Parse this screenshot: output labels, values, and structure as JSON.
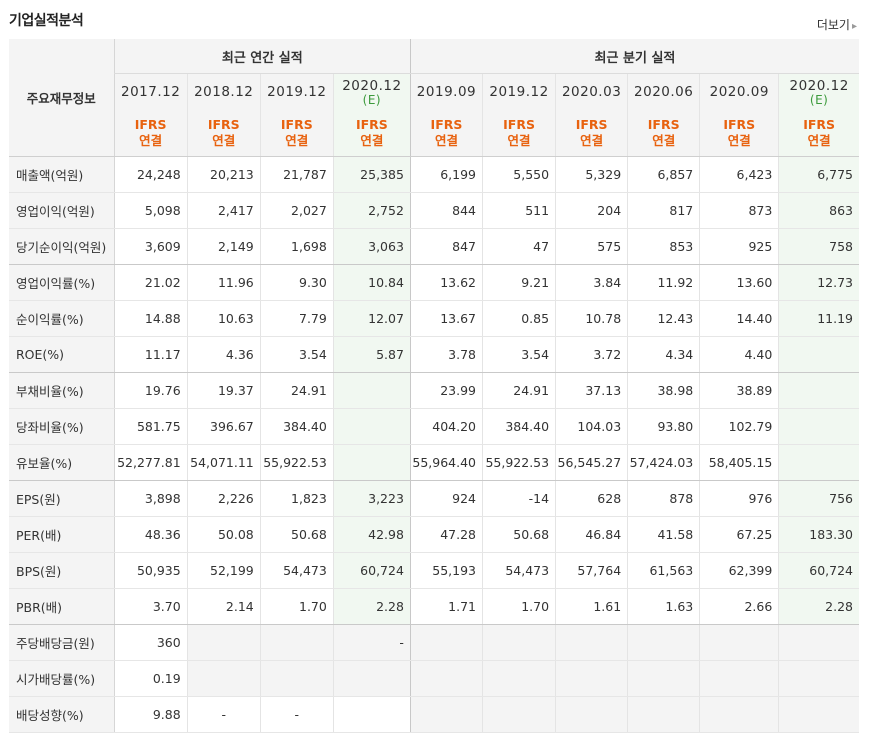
{
  "header": {
    "title": "기업실적분석",
    "more_label": "더보기",
    "more_arrow": "▸"
  },
  "corner_label": "주요재무정보",
  "groups": {
    "annual": "최근 연간 실적",
    "quarterly": "최근 분기 실적"
  },
  "columns": [
    {
      "date": "2017.12",
      "est": "",
      "std1": "IFRS",
      "std2": "연결"
    },
    {
      "date": "2018.12",
      "est": "",
      "std1": "IFRS",
      "std2": "연결"
    },
    {
      "date": "2019.12",
      "est": "",
      "std1": "IFRS",
      "std2": "연결"
    },
    {
      "date": "2020.12",
      "est": "(E)",
      "std1": "IFRS",
      "std2": "연결"
    },
    {
      "date": "2019.09",
      "est": "",
      "std1": "IFRS",
      "std2": "연결"
    },
    {
      "date": "2019.12",
      "est": "",
      "std1": "IFRS",
      "std2": "연결"
    },
    {
      "date": "2020.03",
      "est": "",
      "std1": "IFRS",
      "std2": "연결"
    },
    {
      "date": "2020.06",
      "est": "",
      "std1": "IFRS",
      "std2": "연결"
    },
    {
      "date": "2020.09",
      "est": "",
      "std1": "IFRS",
      "std2": "연결"
    },
    {
      "date": "2020.12",
      "est": "(E)",
      "std1": "IFRS",
      "std2": "연결"
    }
  ],
  "rows": [
    {
      "label": "매출액(억원)",
      "values": [
        "24,248",
        "20,213",
        "21,787",
        "25,385",
        "6,199",
        "5,550",
        "5,329",
        "6,857",
        "6,423",
        "6,775"
      ]
    },
    {
      "label": "영업이익(억원)",
      "values": [
        "5,098",
        "2,417",
        "2,027",
        "2,752",
        "844",
        "511",
        "204",
        "817",
        "873",
        "863"
      ]
    },
    {
      "label": "당기순이익(억원)",
      "values": [
        "3,609",
        "2,149",
        "1,698",
        "3,063",
        "847",
        "47",
        "575",
        "853",
        "925",
        "758"
      ]
    },
    {
      "label": "영업이익률(%)",
      "values": [
        "21.02",
        "11.96",
        "9.30",
        "10.84",
        "13.62",
        "9.21",
        "3.84",
        "11.92",
        "13.60",
        "12.73"
      ]
    },
    {
      "label": "순이익률(%)",
      "values": [
        "14.88",
        "10.63",
        "7.79",
        "12.07",
        "13.67",
        "0.85",
        "10.78",
        "12.43",
        "14.40",
        "11.19"
      ]
    },
    {
      "label": "ROE(%)",
      "values": [
        "11.17",
        "4.36",
        "3.54",
        "5.87",
        "3.78",
        "3.54",
        "3.72",
        "4.34",
        "4.40",
        ""
      ]
    },
    {
      "label": "부채비율(%)",
      "values": [
        "19.76",
        "19.37",
        "24.91",
        "",
        "23.99",
        "24.91",
        "37.13",
        "38.98",
        "38.89",
        ""
      ]
    },
    {
      "label": "당좌비율(%)",
      "values": [
        "581.75",
        "396.67",
        "384.40",
        "",
        "404.20",
        "384.40",
        "104.03",
        "93.80",
        "102.79",
        ""
      ]
    },
    {
      "label": "유보율(%)",
      "values": [
        "52,277.81",
        "54,071.11",
        "55,922.53",
        "",
        "55,964.40",
        "55,922.53",
        "56,545.27",
        "57,424.03",
        "58,405.15",
        ""
      ]
    },
    {
      "label": "EPS(원)",
      "values": [
        "3,898",
        "2,226",
        "1,823",
        "3,223",
        "924",
        "-14",
        "628",
        "878",
        "976",
        "756"
      ]
    },
    {
      "label": "PER(배)",
      "values": [
        "48.36",
        "50.08",
        "50.68",
        "42.98",
        "47.28",
        "50.68",
        "46.84",
        "41.58",
        "67.25",
        "183.30"
      ]
    },
    {
      "label": "BPS(원)",
      "values": [
        "50,935",
        "52,199",
        "54,473",
        "60,724",
        "55,193",
        "54,473",
        "57,764",
        "61,563",
        "62,399",
        "60,724"
      ]
    },
    {
      "label": "PBR(배)",
      "values": [
        "3.70",
        "2.14",
        "1.70",
        "2.28",
        "1.71",
        "1.70",
        "1.61",
        "1.63",
        "2.66",
        "2.28"
      ]
    },
    {
      "label": "주당배당금(원)",
      "values": [
        "360",
        "",
        "",
        "-",
        "",
        "",
        "",
        "",
        "",
        ""
      ]
    },
    {
      "label": "시가배당률(%)",
      "values": [
        "0.19",
        "",
        "",
        "",
        "",
        "",
        "",
        "",
        "",
        ""
      ]
    },
    {
      "label": "배당성향(%)",
      "values": [
        "9.88",
        "-",
        "-",
        "",
        "",
        "",
        "",
        "",
        "",
        ""
      ]
    }
  ],
  "colors": {
    "ifrs": "#e8620f",
    "estimate": "#3c9a3c",
    "negative": "#d0021b",
    "estimate_bg": "#f1f8f1",
    "header_bg": "#f4f4f4"
  }
}
